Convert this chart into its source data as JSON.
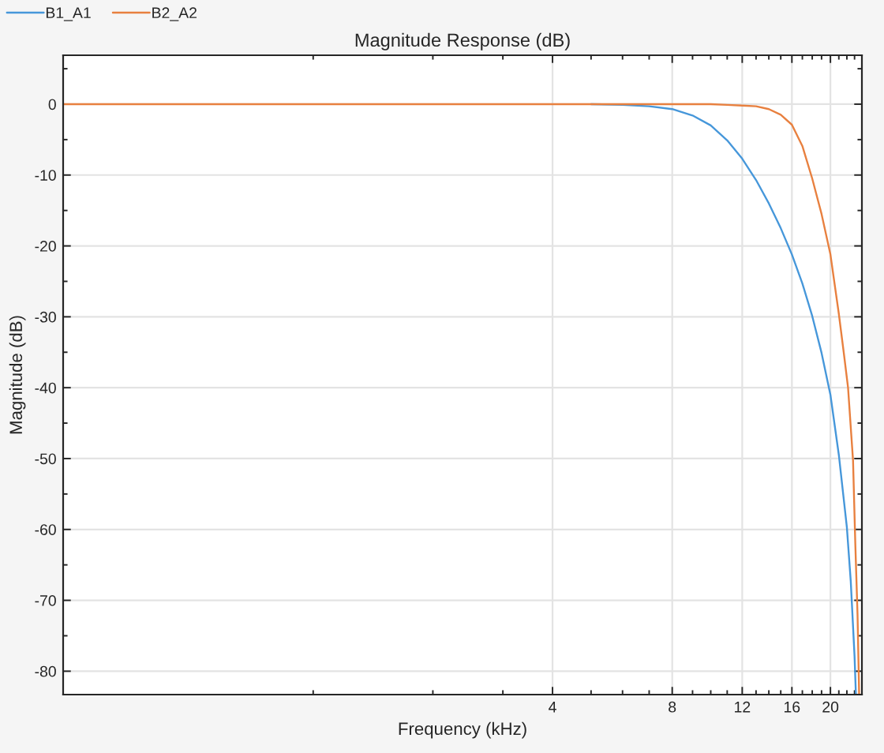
{
  "chart_data": {
    "type": "line",
    "title": "Magnitude Response (dB)",
    "xlabel": "Frequency (kHz)",
    "ylabel": "Magnitude (dB)",
    "log": "x",
    "grid": true,
    "legend": "top left",
    "line_style": "solid",
    "xlim": [
      0.235,
      24
    ],
    "xticks": [
      {
        "value": 1,
        "label": null
      },
      {
        "value": 2,
        "label": null
      },
      {
        "value": 3,
        "label": null
      },
      4,
      {
        "value": 5,
        "label": null
      },
      {
        "value": 6,
        "label": null
      },
      {
        "value": 7,
        "label": null
      },
      8,
      {
        "value": 9,
        "label": null
      },
      {
        "value": 10,
        "label": null
      },
      {
        "value": 11,
        "label": null
      },
      12,
      {
        "value": 13,
        "label": null
      },
      {
        "value": 14,
        "label": null
      },
      {
        "value": 15,
        "label": null
      },
      16,
      {
        "value": 17,
        "label": null
      },
      {
        "value": 18,
        "label": null
      },
      {
        "value": 19,
        "label": null
      },
      20,
      {
        "value": 21,
        "label": null
      },
      {
        "value": 22,
        "label": null
      },
      {
        "value": 23,
        "label": null
      }
    ],
    "ylim": [
      -83.3,
      6.9
    ],
    "yticks": [
      -80,
      {
        "value": -75,
        "label": null
      },
      -70,
      {
        "value": -65,
        "label": null
      },
      -60,
      {
        "value": -55,
        "label": null
      },
      -50,
      {
        "value": -45,
        "label": null
      },
      -40,
      {
        "value": -35,
        "label": null
      },
      -30,
      {
        "value": -25,
        "label": null
      },
      -20,
      {
        "value": -15,
        "label": null
      },
      -10,
      {
        "value": -5,
        "label": null
      },
      0,
      {
        "value": 5,
        "label": null
      }
    ],
    "series": [
      {
        "name": "B1_A1",
        "color": "#4697da",
        "x": [
          5,
          6,
          7,
          8,
          9,
          10,
          11,
          12,
          13,
          14,
          15,
          16,
          17,
          18,
          19,
          20,
          21,
          22,
          22.5,
          23,
          23.18
        ],
        "values": [
          0,
          -0.1,
          -0.3,
          -0.7,
          -1.6,
          -3,
          -5.1,
          -7.7,
          -10.7,
          -14,
          -17.5,
          -21.2,
          -25.3,
          -29.9,
          -35.1,
          -41,
          -49.5,
          -59.7,
          -67.3,
          -77.9,
          -83.3
        ]
      },
      {
        "name": "B2_A2",
        "color": "#e8803f",
        "x": [
          0.235,
          1,
          2,
          4,
          8,
          10,
          11,
          12,
          13,
          14,
          15,
          16,
          17,
          18,
          19,
          20,
          21,
          21.6,
          22.15,
          22.8,
          23.1,
          23.4,
          23.62
        ],
        "values": [
          0,
          0,
          0,
          0,
          0,
          0,
          -0.1,
          -0.2,
          -0.3,
          -0.7,
          -1.5,
          -2.9,
          -5.9,
          -10.5,
          -15.5,
          -21.2,
          -29.6,
          -35,
          -40,
          -50.3,
          -62,
          -72,
          -83.3
        ]
      }
    ]
  }
}
